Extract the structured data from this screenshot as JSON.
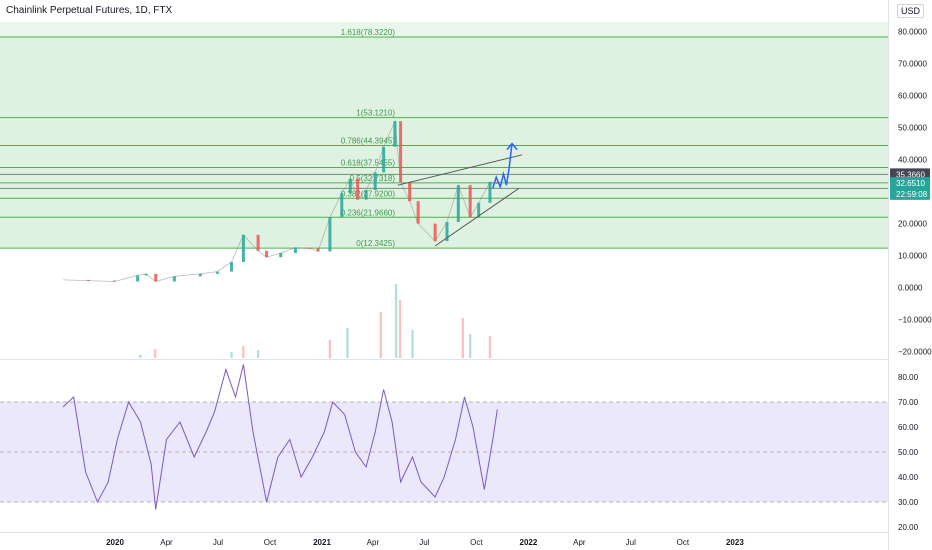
{
  "header": {
    "title": "Chainlink Perpetual Futures, 1D, FTX",
    "currency": "USD"
  },
  "colors": {
    "fib_zone": "#dff2e1",
    "fib_line": "#4caf50",
    "fib_text": "#3d9a4f",
    "rsi_band": "#ece8fb",
    "rsi_line": "#7e57c2",
    "up": "#26a69a",
    "down": "#ef5350",
    "arrow": "#2962ff",
    "trend": "#555555"
  },
  "chart_data": [
    {
      "type": "line",
      "name": "price",
      "y_ticks": [
        "80.0000",
        "70.0000",
        "60.0000",
        "50.0000",
        "40.0000",
        "30.0000",
        "20.0000",
        "10.0000",
        "0.0000",
        "−10.0000",
        "−20.0000"
      ],
      "y_tick_values": [
        80,
        70,
        60,
        50,
        40,
        30,
        20,
        10,
        0,
        -10,
        -20
      ],
      "ylim": [
        -22,
        83
      ],
      "x_ticks": [
        "2020",
        "Apr",
        "Jul",
        "Oct",
        "2021",
        "Apr",
        "Jul",
        "Oct",
        "2022",
        "Apr",
        "Jul",
        "Oct",
        "2023"
      ],
      "x_tick_dates": [
        "2020-01-01",
        "2020-04-01",
        "2020-07-01",
        "2020-10-01",
        "2021-01-01",
        "2021-04-01",
        "2021-07-01",
        "2021-10-01",
        "2022-01-01",
        "2022-04-01",
        "2022-07-01",
        "2022-10-01",
        "2023-01-01"
      ],
      "price_series": {
        "dates": [
          "2019-10-01",
          "2019-11-15",
          "2019-12-31",
          "2020-02-10",
          "2020-02-25",
          "2020-03-13",
          "2020-04-15",
          "2020-05-31",
          "2020-06-30",
          "2020-07-25",
          "2020-08-15",
          "2020-09-10",
          "2020-09-25",
          "2020-10-20",
          "2020-11-15",
          "2020-12-10",
          "2020-12-25",
          "2021-01-15",
          "2021-02-05",
          "2021-02-20",
          "2021-03-05",
          "2021-03-20",
          "2021-04-05",
          "2021-04-20",
          "2021-05-10",
          "2021-05-20",
          "2021-06-05",
          "2021-06-20",
          "2021-07-20",
          "2021-08-10",
          "2021-08-30",
          "2021-09-20",
          "2021-10-05",
          "2021-10-25",
          "2021-11-07"
        ],
        "values": [
          2.4,
          2.2,
          1.9,
          3.8,
          4.3,
          1.9,
          3.5,
          4.3,
          5.0,
          8.0,
          16.5,
          11.5,
          9.5,
          10.8,
          12.5,
          12.2,
          11.3,
          22.0,
          29.5,
          34.0,
          27.5,
          30.5,
          36.0,
          44.0,
          52.0,
          33.0,
          27.0,
          20.0,
          14.5,
          20.5,
          32.0,
          22.0,
          26.5,
          33.0,
          32.5
        ]
      },
      "fib_levels": [
        {
          "label": "1.618(78.3220)",
          "value": 78.322
        },
        {
          "label": "1(53.1210)",
          "value": 53.121
        },
        {
          "label": "0.786(44.3945)",
          "value": 44.3945
        },
        {
          "label": "0.618(37.5455)",
          "value": 37.5455
        },
        {
          "label": "0.5(32.7318)",
          "value": 32.7318
        },
        {
          "label": "0.382(27.9200)",
          "value": 27.92
        },
        {
          "label": "0.236(21.9660)",
          "value": 21.966
        },
        {
          "label": "0(12.3425)",
          "value": 12.3425
        }
      ],
      "price_badges": [
        {
          "label": "35.3660",
          "value": 35.366,
          "color": "#434651"
        },
        {
          "label": "32.6510",
          "value": 32.651,
          "color": "#26a69a"
        },
        {
          "label": "22:59:08",
          "value": 29.3,
          "color": "#26a69a"
        }
      ],
      "extra_lines": [
        35.366,
        31.0
      ],
      "trendlines": [
        {
          "start": [
            "2021-05-15",
            32.0
          ],
          "end": [
            "2021-12-21",
            41.5
          ]
        },
        {
          "start": [
            "2021-07-20",
            13.0
          ],
          "end": [
            "2021-12-15",
            31.0
          ]
        }
      ],
      "projection": {
        "dates": [
          "2021-10-30",
          "2021-11-05",
          "2021-11-12",
          "2021-11-18",
          "2021-11-23",
          "2021-11-28",
          "2021-12-03"
        ],
        "values": [
          31.0,
          34.5,
          31.5,
          35.5,
          32.0,
          37.5,
          45.0
        ]
      }
    },
    {
      "type": "line",
      "name": "RSI",
      "y_ticks": [
        "80.00",
        "70.00",
        "60.00",
        "50.00",
        "40.00",
        "30.00",
        "20.00"
      ],
      "y_tick_values": [
        80,
        70,
        60,
        50,
        40,
        30,
        20
      ],
      "ylim": [
        18,
        86
      ],
      "band": [
        30,
        70
      ],
      "midline": 50,
      "dates": [
        "2019-10-01",
        "2019-10-20",
        "2019-11-10",
        "2019-12-01",
        "2019-12-20",
        "2020-01-05",
        "2020-01-25",
        "2020-02-15",
        "2020-03-05",
        "2020-03-13",
        "2020-04-01",
        "2020-04-25",
        "2020-05-20",
        "2020-06-10",
        "2020-06-25",
        "2020-07-15",
        "2020-08-01",
        "2020-08-15",
        "2020-09-01",
        "2020-09-25",
        "2020-10-15",
        "2020-11-05",
        "2020-11-25",
        "2020-12-15",
        "2021-01-05",
        "2021-01-20",
        "2021-02-10",
        "2021-03-01",
        "2021-03-20",
        "2021-04-05",
        "2021-04-20",
        "2021-05-05",
        "2021-05-20",
        "2021-06-10",
        "2021-06-25",
        "2021-07-20",
        "2021-08-05",
        "2021-08-25",
        "2021-09-10",
        "2021-09-25",
        "2021-10-15",
        "2021-10-30",
        "2021-11-07"
      ],
      "values": [
        68,
        72,
        42,
        30,
        38,
        55,
        70,
        62,
        45,
        27,
        55,
        62,
        48,
        58,
        66,
        83,
        72,
        85,
        58,
        30,
        48,
        55,
        40,
        48,
        58,
        70,
        65,
        50,
        44,
        58,
        75,
        62,
        38,
        48,
        38,
        32,
        40,
        55,
        72,
        60,
        35,
        55,
        67
      ]
    },
    {
      "type": "bar",
      "name": "volume",
      "dates": [
        "2020-02-15",
        "2020-03-12",
        "2020-07-25",
        "2020-08-15",
        "2020-09-10",
        "2021-01-15",
        "2021-02-15",
        "2021-04-15",
        "2021-05-12",
        "2021-05-19",
        "2021-06-10",
        "2021-09-07",
        "2021-09-20",
        "2021-10-25"
      ],
      "values": [
        3,
        9,
        6,
        12,
        8,
        18,
        30,
        46,
        74,
        58,
        28,
        40,
        24,
        22
      ]
    }
  ]
}
